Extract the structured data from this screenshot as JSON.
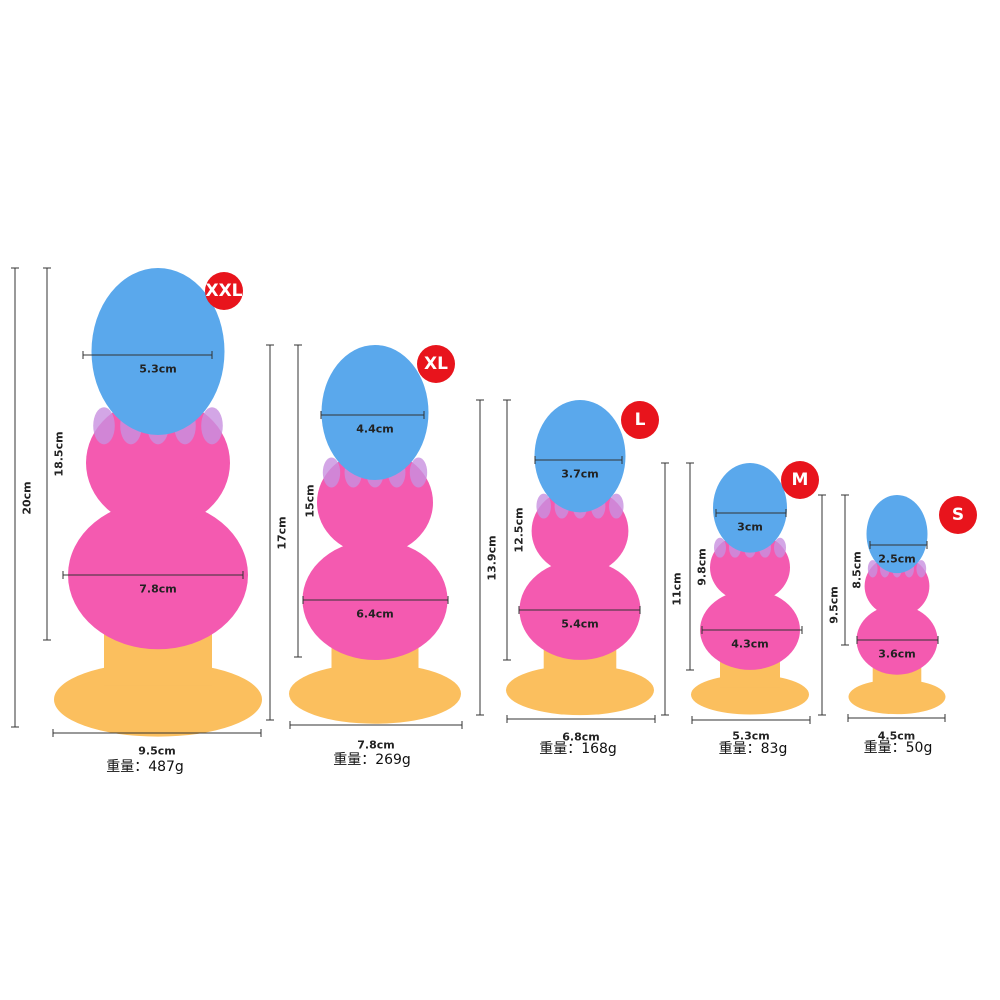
{
  "weight_label": "重量：",
  "colors": {
    "tip": "#5aa8ec",
    "middle": "#f45ab0",
    "base": "#fbbf5e",
    "badge": "#e8141c"
  },
  "sizes": [
    {
      "name": "XXL",
      "total_length": "20cm",
      "insertable_length": "18.5cm",
      "tip_width": "5.3cm",
      "mid_width": "7.8cm",
      "base_width": "9.5cm",
      "weight": "487g"
    },
    {
      "name": "XL",
      "total_length": "17cm",
      "insertable_length": "15cm",
      "tip_width": "4.4cm",
      "mid_width": "6.4cm",
      "base_width": "7.8cm",
      "weight": "269g"
    },
    {
      "name": "L",
      "total_length": "13.9cm",
      "insertable_length": "12.5cm",
      "tip_width": "3.7cm",
      "mid_width": "5.4cm",
      "base_width": "6.8cm",
      "weight": "168g"
    },
    {
      "name": "M",
      "total_length": "11cm",
      "insertable_length": "9.8cm",
      "tip_width": "3cm",
      "mid_width": "4.3cm",
      "base_width": "5.3cm",
      "weight": "83g"
    },
    {
      "name": "S",
      "total_length": "9.5cm",
      "insertable_length": "8.5cm",
      "tip_width": "2.5cm",
      "mid_width": "3.6cm",
      "base_width": "4.5cm",
      "weight": "50g"
    }
  ]
}
